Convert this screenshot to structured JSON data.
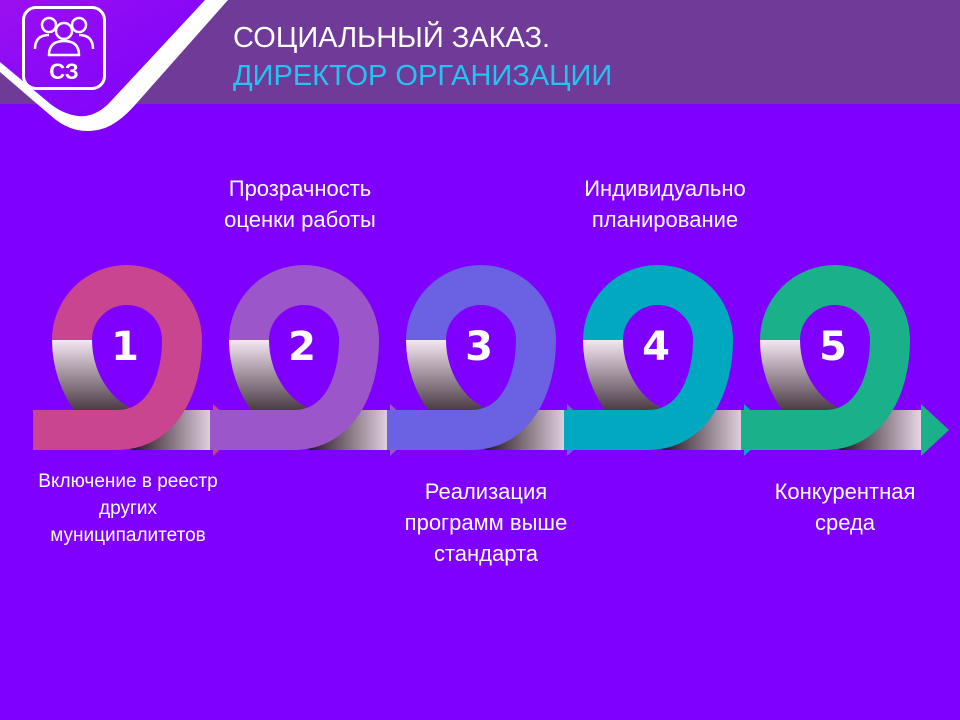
{
  "header": {
    "title_line1": "СОЦИАЛЬНЫЙ ЗАКАЗ.",
    "title_line2": "ДИРЕКТОР ОРГАНИЗАЦИИ",
    "logo_text": "СЗ",
    "logo_icon": "people-group-icon"
  },
  "colors": {
    "background": "#7f00fe",
    "header_band": "#6f3a98",
    "title_accent": "#23c4f0"
  },
  "steps": [
    {
      "number": "1",
      "label": "Включение в реестр других муниципалитетов",
      "label_lines": [
        "Включение в реестр",
        "других",
        "муниципалитетов"
      ],
      "color": "#c9458f"
    },
    {
      "number": "2",
      "label": "Прозрачность оценки работы",
      "label_lines": [
        "Прозрачность",
        "оценки работы"
      ],
      "color": "#9b57c9"
    },
    {
      "number": "3",
      "label": "Реализация программ выше стандарта",
      "label_lines": [
        "Реализация",
        "программ выше",
        "стандарта"
      ],
      "color": "#6a62e2"
    },
    {
      "number": "4",
      "label": "Индивидуально планирование",
      "label_lines": [
        "Индивидуально",
        "планирование"
      ],
      "color": "#00a9bf"
    },
    {
      "number": "5",
      "label": "Конкурентная среда",
      "label_lines": [
        "Конкурентная",
        "среда"
      ],
      "color": "#19b08a"
    }
  ]
}
